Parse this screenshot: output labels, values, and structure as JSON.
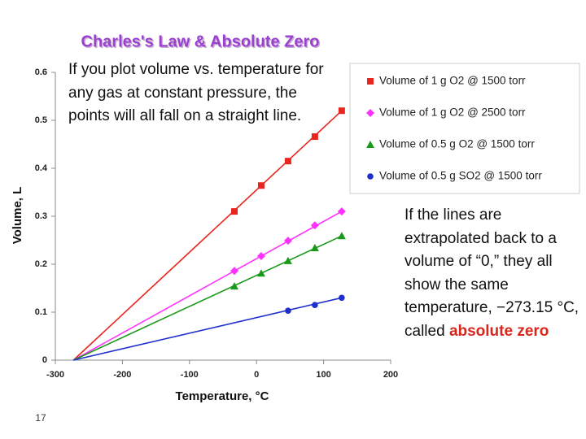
{
  "slide": {
    "callout_top": "If you plot volume vs. temperature for any gas at constant pressure, the points will all fall on a straight line.",
    "callout_right": "If the lines are extrapolated back to a volume of “0,” they all show the same temperature, −273.15 °C, called",
    "callout_right_emphasis": "absolute zero",
    "page_number": "17"
  },
  "chart_data": {
    "type": "scatter",
    "title": "Charles's Law & Absolute Zero",
    "x_label": "Temperature, °C",
    "y_label": "Volume, L",
    "xlim": [
      -300,
      200
    ],
    "xticks": [
      -300,
      -200,
      -100,
      0,
      100,
      200
    ],
    "ylim": [
      0,
      0.6
    ],
    "yticks": [
      0,
      0.1,
      0.2,
      0.3,
      0.4,
      0.5,
      0.6
    ],
    "zero_volume_x": -273,
    "legend": "upper right",
    "series": [
      {
        "name": "Volume of 1 g O2 @ 1500 torr",
        "color": "#e8251f",
        "marker": "square",
        "x": [
          -33,
          7,
          47,
          87,
          127
        ],
        "values": [
          0.31,
          0.364,
          0.415,
          0.466,
          0.52
        ]
      },
      {
        "name": "Volume of 1 g O2 @ 2500 torr",
        "color": "#ff33ff",
        "marker": "diamond",
        "x": [
          -33,
          7,
          47,
          87,
          127
        ],
        "values": [
          0.186,
          0.217,
          0.249,
          0.281,
          0.31
        ]
      },
      {
        "name": "Volume of 0.5 g O2 @ 1500 torr",
        "color": "#1a9a1a",
        "marker": "triangle",
        "x": [
          -33,
          7,
          47,
          87,
          127
        ],
        "values": [
          0.154,
          0.181,
          0.207,
          0.234,
          0.259
        ]
      },
      {
        "name": "Volume of 0.5 g SO2 @ 1500 torr",
        "color": "#1f2fcc",
        "marker": "circle",
        "x": [
          47,
          87,
          127
        ],
        "values": [
          0.103,
          0.115,
          0.13
        ]
      }
    ]
  }
}
